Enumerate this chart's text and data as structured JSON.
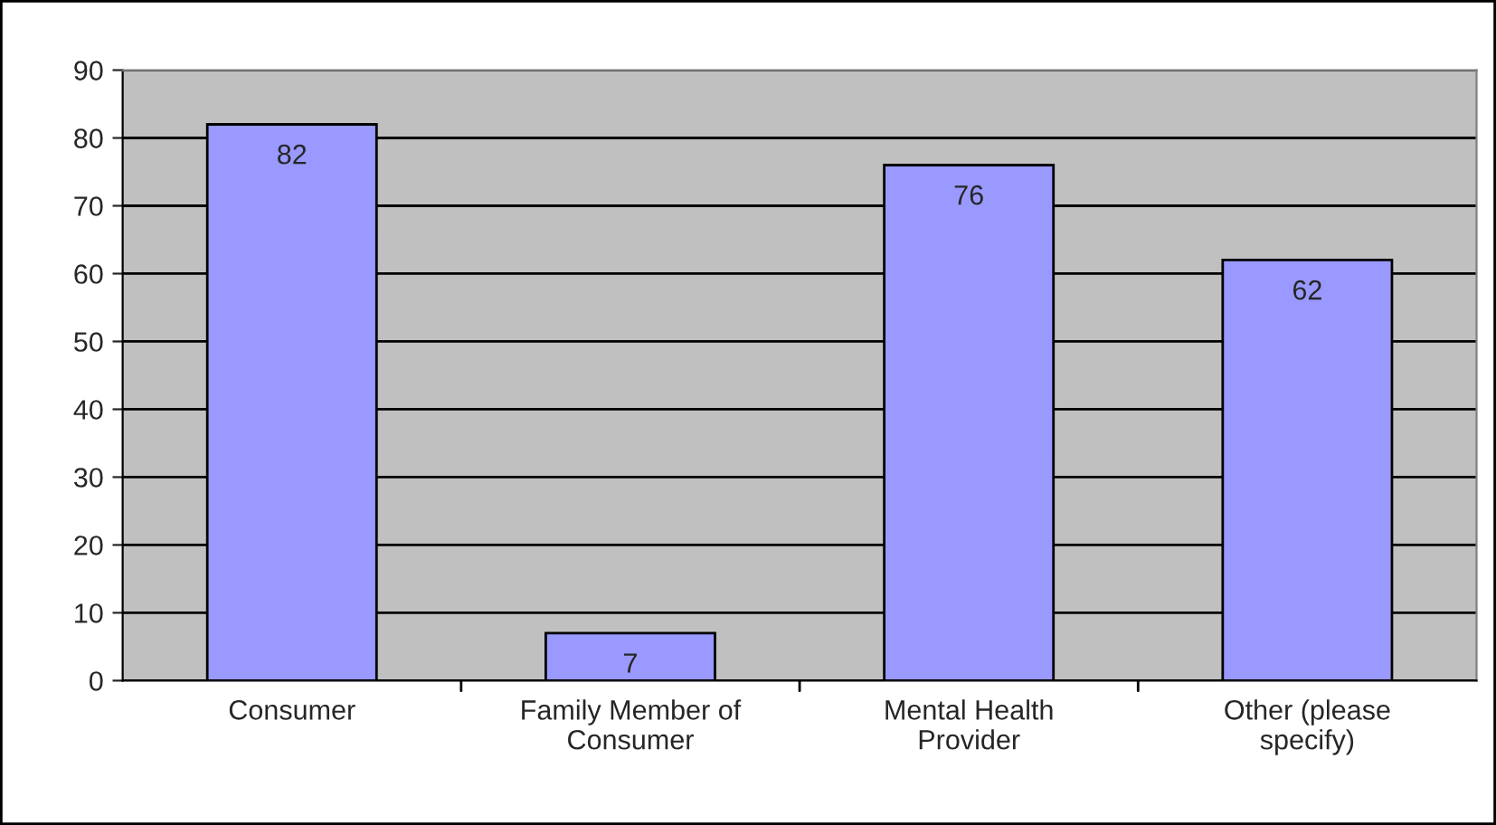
{
  "chart_data": {
    "type": "bar",
    "categories": [
      "Consumer",
      "Family Member of\nConsumer",
      "Mental Health\nProvider",
      "Other (please\nspecify)"
    ],
    "values": [
      82,
      7,
      76,
      62
    ],
    "color": "#9999ff",
    "ylim": [
      0,
      90
    ],
    "yticks": [
      0,
      10,
      20,
      30,
      40,
      50,
      60,
      70,
      80,
      90
    ],
    "grid": "y",
    "data_labels": true,
    "legend": false
  }
}
